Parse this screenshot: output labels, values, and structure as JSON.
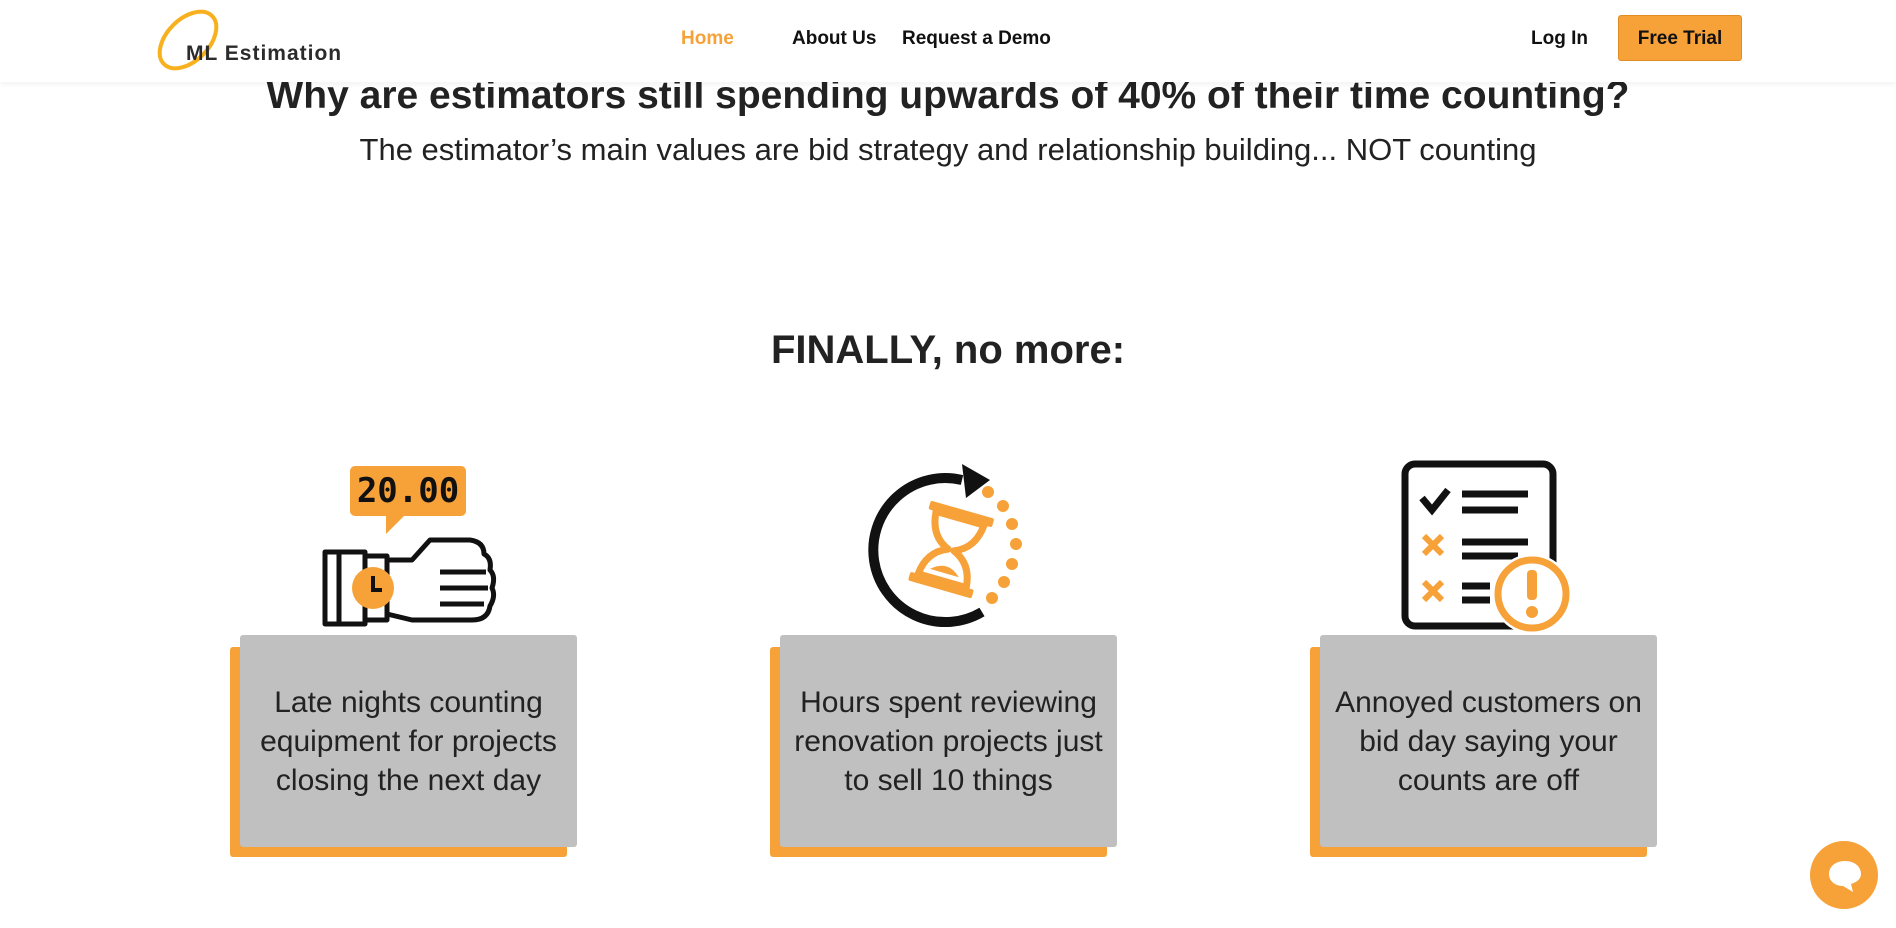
{
  "header": {
    "logo_text": "ML Estimation",
    "nav": [
      {
        "label": "Home",
        "active": true
      },
      {
        "label": "About Us",
        "active": false
      },
      {
        "label": "Request a Demo",
        "active": false
      }
    ],
    "login_label": "Log In",
    "cta_label": "Free Trial"
  },
  "hero": {
    "title": "Why are estimators still spending upwards of 40% of their time counting?",
    "subtitle": "The estimator’s main values are bid strategy and relationship building... NOT counting"
  },
  "section": {
    "title": "FINALLY, no more:"
  },
  "cards": [
    {
      "icon": "wristwatch-hand-icon",
      "watch_display": "20.00",
      "text": "Late nights counting equipment for projects closing the next day"
    },
    {
      "icon": "hourglass-refresh-icon",
      "text": "Hours spent reviewing renovation projects just to sell 10 things"
    },
    {
      "icon": "checklist-warning-icon",
      "text": "Annoyed customers on bid day saying your counts are off"
    }
  ],
  "colors": {
    "accent": "#f7a139",
    "card_bg": "#c0c0c0",
    "text": "#222222"
  },
  "chat": {
    "icon": "chat-bubble-icon"
  }
}
